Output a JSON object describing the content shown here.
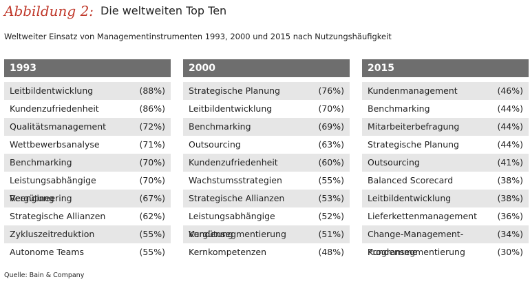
{
  "header": {
    "label": "Abbildung 2:",
    "title": "Die weltweiten Top Ten"
  },
  "subtitle": "Weltweiter Einsatz von Managementinstrumenten 1993, 2000 und 2015 nach Nutzungshäufigkeit",
  "columns": [
    {
      "year": "1993",
      "rows": [
        {
          "name": "Leitbildentwicklung",
          "value": "(88%)"
        },
        {
          "name": "Kundenzufriedenheit",
          "value": "(86%)"
        },
        {
          "name": "Qualitätsmanagement",
          "value": "(72%)"
        },
        {
          "name": "Wettbewerbsanalyse",
          "value": "(71%)"
        },
        {
          "name": "Benchmarking",
          "value": "(70%)"
        },
        {
          "name": "Leistungsabhängige Vergütung",
          "value": "(70%)"
        },
        {
          "name": "Reengineering",
          "value": "(67%)"
        },
        {
          "name": "Strategische Allianzen",
          "value": "(62%)"
        },
        {
          "name": "Zykluszeitreduktion",
          "value": "(55%)"
        },
        {
          "name": "Autonome Teams",
          "value": "(55%)"
        }
      ]
    },
    {
      "year": "2000",
      "rows": [
        {
          "name": "Strategische Planung",
          "value": "(76%)"
        },
        {
          "name": "Leitbildentwicklung",
          "value": "(70%)"
        },
        {
          "name": "Benchmarking",
          "value": "(69%)"
        },
        {
          "name": "Outsourcing",
          "value": "(63%)"
        },
        {
          "name": "Kundenzufriedenheit",
          "value": "(60%)"
        },
        {
          "name": "Wachstumsstrategien",
          "value": "(55%)"
        },
        {
          "name": "Strategische Allianzen",
          "value": "(53%)"
        },
        {
          "name": "Leistungsabhängige Vergütung",
          "value": "(52%)"
        },
        {
          "name": "Kundensegmentierung",
          "value": "(51%)"
        },
        {
          "name": "Kernkompetenzen",
          "value": "(48%)"
        }
      ]
    },
    {
      "year": "2015",
      "rows": [
        {
          "name": "Kundenmanagement",
          "value": "(46%)"
        },
        {
          "name": "Benchmarking",
          "value": "(44%)"
        },
        {
          "name": "Mitarbeiterbefragung",
          "value": "(44%)"
        },
        {
          "name": "Strategische Planung",
          "value": "(44%)"
        },
        {
          "name": "Outsourcing",
          "value": "(41%)"
        },
        {
          "name": "Balanced Scorecard",
          "value": "(38%)"
        },
        {
          "name": "Leitbildentwicklung",
          "value": "(38%)"
        },
        {
          "name": "Lieferkettenmanagement",
          "value": "(36%)"
        },
        {
          "name": "Change-Management-Programme",
          "value": "(34%)"
        },
        {
          "name": "Kundensegmentierung",
          "value": "(30%)"
        }
      ]
    }
  ],
  "source": "Quelle: Bain & Company"
}
